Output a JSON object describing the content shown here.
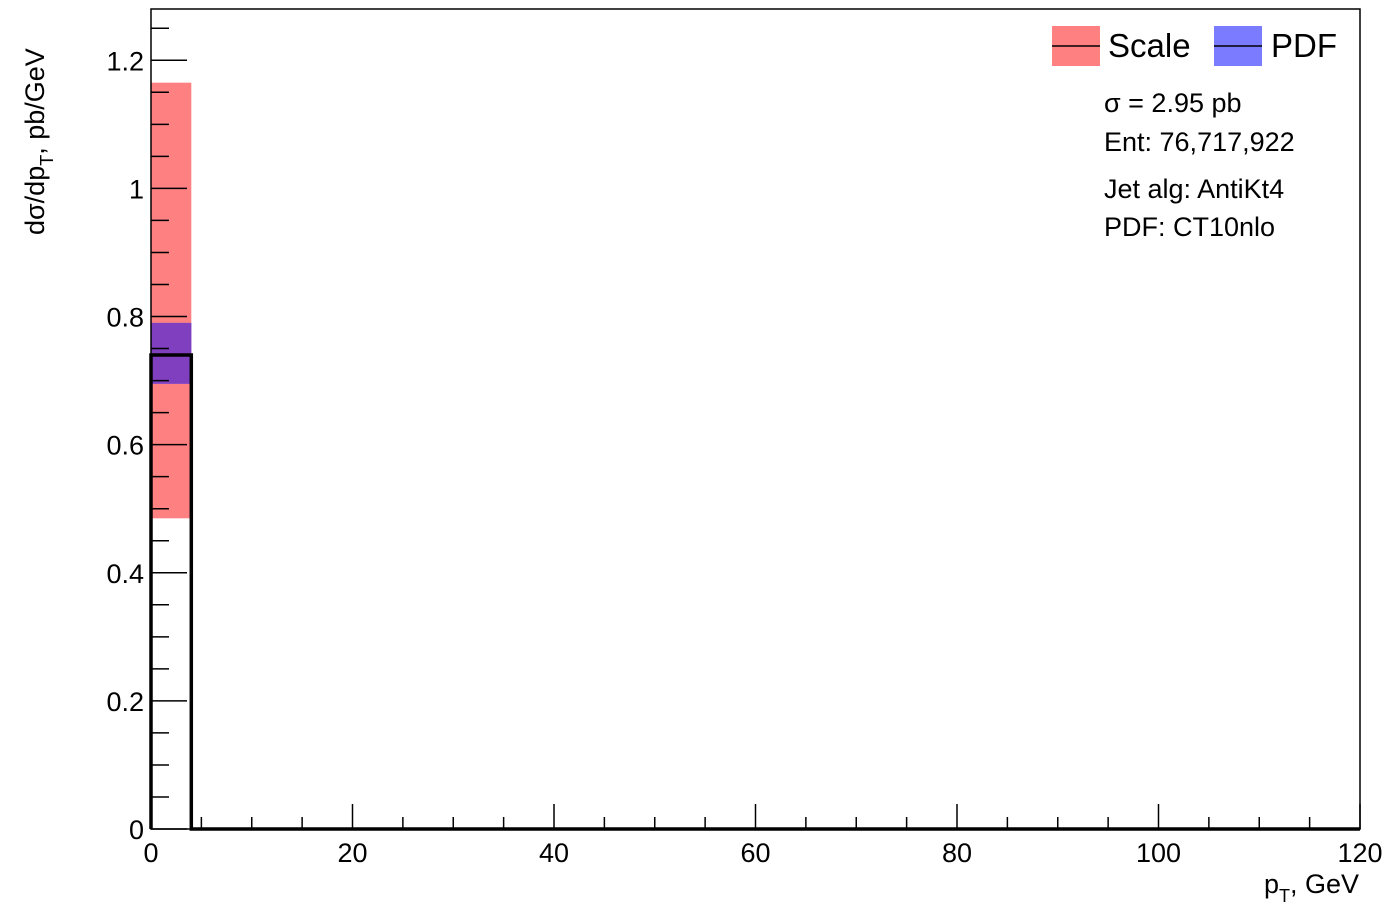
{
  "chart_data": {
    "type": "bar",
    "xlabel": {
      "main": "p",
      "sub": "T",
      "rest": ", GeV"
    },
    "ylabel": {
      "main": "dσ/dp",
      "sub": "T",
      "rest": ", pb/GeV"
    },
    "xlim": [
      0,
      120
    ],
    "ylim": [
      0,
      1.28
    ],
    "x_ticks": [
      0,
      20,
      40,
      60,
      80,
      100,
      120
    ],
    "x_tick_labels": [
      "0",
      "20",
      "40",
      "60",
      "80",
      "100",
      "120"
    ],
    "y_ticks": [
      0,
      0.2,
      0.4,
      0.6,
      0.8,
      1,
      1.2
    ],
    "y_tick_labels": [
      "0",
      "0.2",
      "0.4",
      "0.6",
      "0.8",
      "1",
      "1.2"
    ],
    "bins": [
      {
        "x_low": 0,
        "x_high": 4,
        "value": 0.74,
        "scale_band": [
          0.485,
          1.165
        ],
        "pdf_band": [
          0.695,
          0.79
        ]
      }
    ],
    "legend": {
      "position": "top-right",
      "entries": [
        {
          "label": "Scale",
          "color": "#ff8080"
        },
        {
          "label": "PDF",
          "color": "#7b7bff"
        }
      ]
    },
    "annotations": [
      "σ = 2.95 pb",
      "Ent: 76,717,922",
      "Jet alg: AntiKt4",
      "PDF: CT10nlo"
    ],
    "colors": {
      "scale": "#ff8080",
      "pdf": "#7b7bff",
      "overlap": "#7f3fbf",
      "line": "#000000"
    }
  }
}
